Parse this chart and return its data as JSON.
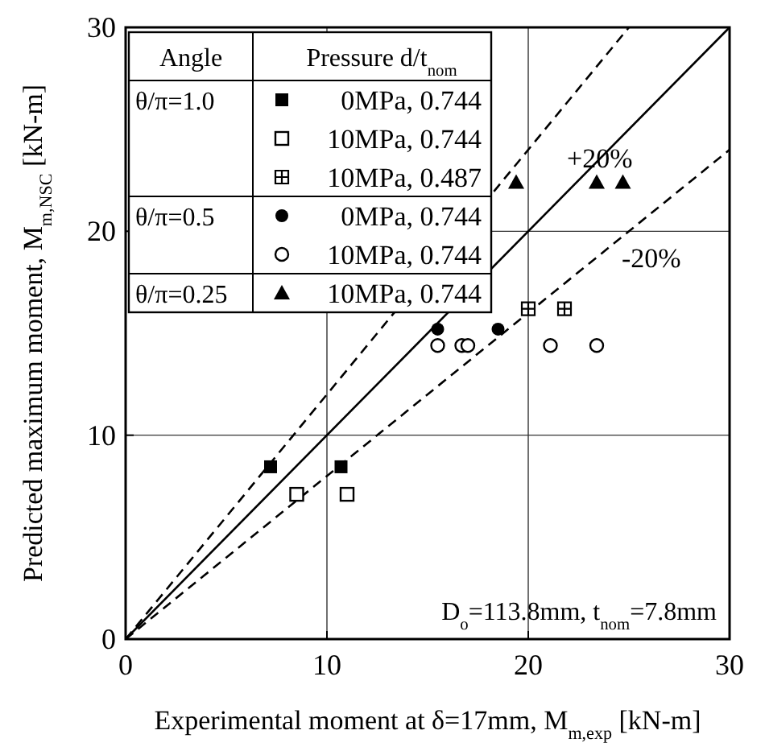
{
  "chart_data": {
    "type": "scatter",
    "xlabel": "Experimental moment at δ=17mm, M$_{m,exp}$ [kN-m]",
    "ylabel": "Predicted maximum moment, M$_{m,NSC}$ [kN-m]",
    "xlim": [
      0,
      30
    ],
    "ylim": [
      0,
      30
    ],
    "xticks": [
      0,
      10,
      20,
      30
    ],
    "yticks": [
      0,
      10,
      20,
      30
    ],
    "grid": true,
    "legend": "top left",
    "legend_title": "Angle",
    "annotations": [
      "+20%",
      "-20%",
      "D$_{o}$=113.8mm, t$_{nom}$=7.8mm",
      "Pressure d/t$_{nom}$",
      "θ/π=1.0",
      "θ/π=0.5",
      "θ/π=0.25"
    ],
    "series": [
      {
        "name": "0MPa, 0.744",
        "color": "#000000",
        "marker": "square",
        "x": [
          7.2,
          10.7
        ],
        "values": [
          8.45,
          8.45
        ]
      },
      {
        "name": "10MPa, 0.744",
        "color": "#000000",
        "marker": "square-open",
        "x": [
          8.5,
          11.0
        ],
        "values": [
          7.1,
          7.1
        ]
      },
      {
        "name": "10MPa, 0.487",
        "color": "#000000",
        "marker": "cross",
        "x": [
          20.0,
          21.8
        ],
        "values": [
          16.2,
          16.2
        ]
      },
      {
        "name": "0MPa, 0.744",
        "color": "#000000",
        "marker": "circle",
        "x": [
          15.5,
          18.5
        ],
        "values": [
          15.2,
          15.2
        ]
      },
      {
        "name": "10MPa, 0.744",
        "color": "#000000",
        "marker": "circle-open",
        "x": [
          15.5,
          16.7,
          17.0,
          21.1,
          23.4
        ],
        "values": [
          14.4,
          14.4,
          14.4,
          14.4,
          14.4
        ]
      },
      {
        "name": "10MPa, 0.744",
        "color": "#000000",
        "marker": "triangle",
        "x": [
          19.4,
          23.4,
          24.7
        ],
        "values": [
          22.4,
          22.4,
          22.4
        ]
      },
      {
        "type": "line",
        "color": "#000000",
        "line_style": "solid",
        "x": [
          0,
          30
        ],
        "values": [
          0,
          30
        ]
      },
      {
        "type": "line",
        "color": "#000000",
        "line_style": "dashed",
        "x": [
          0,
          25
        ],
        "values": [
          0,
          30
        ]
      },
      {
        "type": "line",
        "color": "#000000",
        "line_style": "dashed",
        "x": [
          0,
          30
        ],
        "values": [
          0,
          24
        ]
      }
    ]
  }
}
